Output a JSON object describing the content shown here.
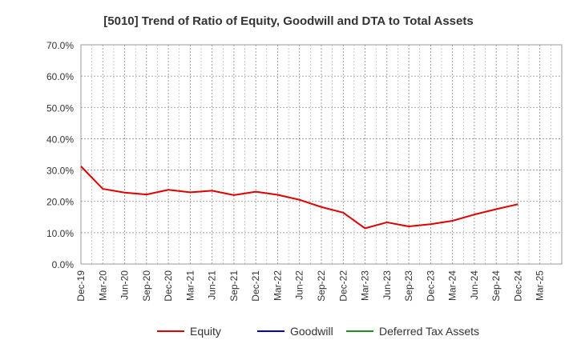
{
  "chart_data": {
    "type": "line",
    "title": "[5010]  Trend of Ratio of Equity, Goodwill and DTA to Total Assets",
    "xlabel": "",
    "ylabel": "",
    "ylim": [
      0,
      70
    ],
    "y_ticks": [
      0,
      10,
      20,
      30,
      40,
      50,
      60,
      70
    ],
    "y_tick_labels": [
      "0.0%",
      "10.0%",
      "20.0%",
      "30.0%",
      "40.0%",
      "50.0%",
      "60.0%",
      "70.0%"
    ],
    "x_tick_labels": [
      "Dec-19",
      "Mar-20",
      "Jun-20",
      "Sep-20",
      "Dec-20",
      "Mar-21",
      "Jun-21",
      "Sep-21",
      "Dec-21",
      "Mar-22",
      "Jun-22",
      "Sep-22",
      "Dec-22",
      "Mar-23",
      "Jun-23",
      "Sep-23",
      "Dec-23",
      "Mar-24",
      "Jun-24",
      "Sep-24",
      "Dec-24",
      "Mar-25"
    ],
    "grid": true,
    "legend_position": "bottom",
    "series": [
      {
        "name": "Equity",
        "color": "#e00000",
        "values": [
          31.2,
          24.0,
          22.8,
          22.2,
          23.7,
          22.9,
          23.4,
          22.0,
          23.1,
          22.1,
          20.5,
          18.2,
          16.4,
          11.4,
          13.3,
          12.0,
          12.7,
          13.8,
          15.8,
          17.5,
          19.1,
          null
        ]
      },
      {
        "name": "Goodwill",
        "color": "#0000cc",
        "values": [
          null,
          null,
          null,
          null,
          null,
          null,
          null,
          null,
          null,
          null,
          null,
          null,
          null,
          null,
          null,
          null,
          null,
          null,
          null,
          null,
          null,
          null
        ]
      },
      {
        "name": "Deferred Tax Assets",
        "color": "#228b22",
        "values": [
          null,
          null,
          null,
          null,
          null,
          null,
          null,
          null,
          null,
          null,
          null,
          null,
          null,
          null,
          null,
          null,
          null,
          null,
          null,
          null,
          null,
          null
        ]
      }
    ]
  }
}
